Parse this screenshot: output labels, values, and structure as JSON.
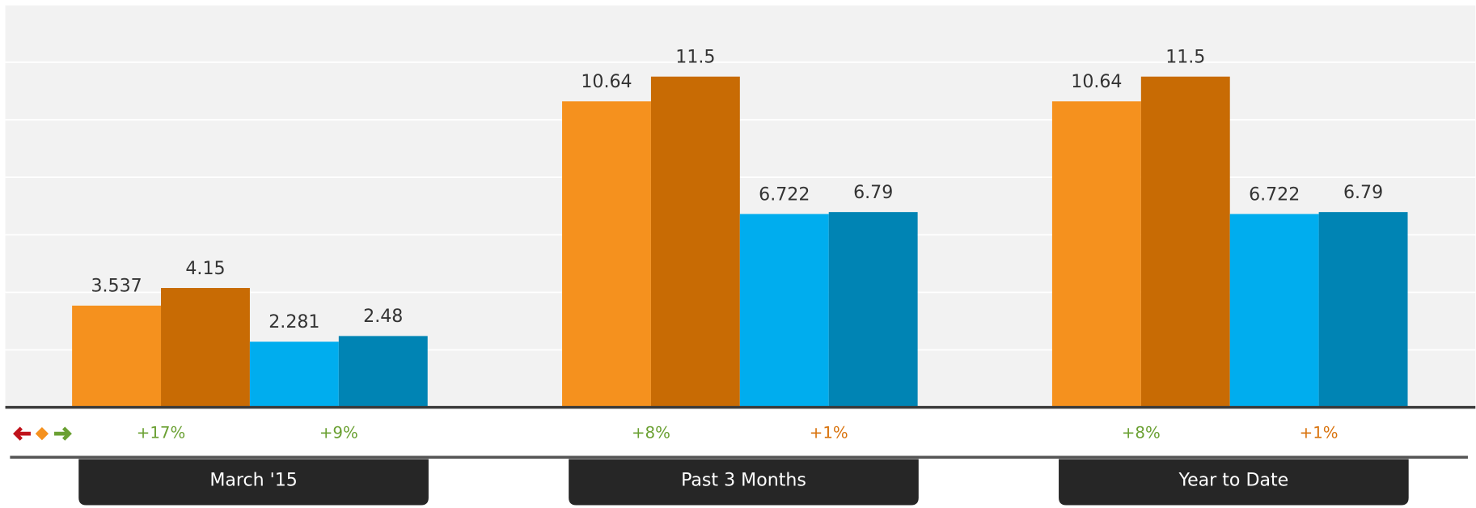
{
  "chart_data": {
    "type": "bar",
    "categories": [
      "March '15",
      "Past 3 Months",
      "Year to Date"
    ],
    "series": [
      {
        "color": "#f5911e",
        "values": [
          3.537,
          10.64,
          10.64
        ]
      },
      {
        "color": "#c86b04",
        "values": [
          4.15,
          11.5,
          11.5
        ]
      },
      {
        "color": "#00adee",
        "values": [
          2.281,
          6.722,
          6.722
        ]
      },
      {
        "color": "#0084b4",
        "values": [
          2.48,
          6.79,
          6.79
        ]
      }
    ],
    "changes": [
      [
        {
          "text": "+17%",
          "color": "#6aa032"
        },
        {
          "text": "+9%",
          "color": "#6aa032"
        }
      ],
      [
        {
          "text": "+8%",
          "color": "#6aa032"
        },
        {
          "text": "+1%",
          "color": "#d9730d"
        }
      ],
      [
        {
          "text": "+8%",
          "color": "#6aa032"
        },
        {
          "text": "+1%",
          "color": "#d9730d"
        }
      ]
    ],
    "ylim": [
      0,
      14
    ],
    "yticks": [
      0,
      2,
      4,
      6,
      8,
      10,
      12,
      14
    ],
    "grid": true
  }
}
